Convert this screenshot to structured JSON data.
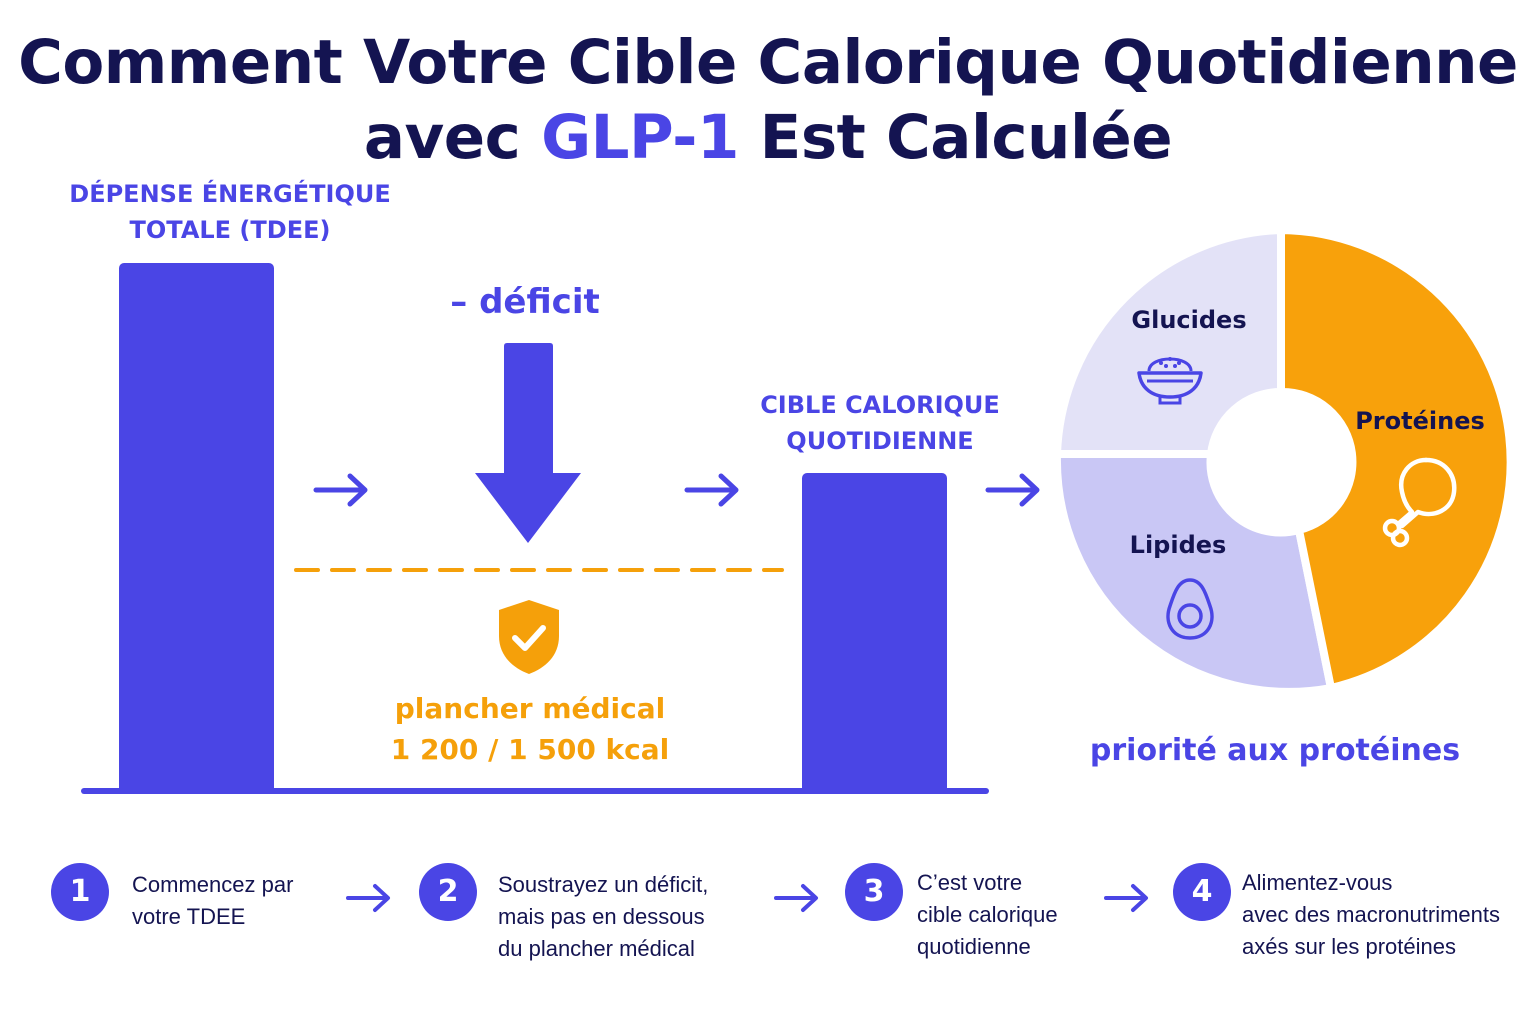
{
  "title": {
    "line1": "Comment Votre Cible Calorique Quotidienne",
    "line2_prefix": "avec ",
    "line2_accent": "GLP-1",
    "line2_suffix": " Est Calculée"
  },
  "tdee": {
    "label_line1": "DÉPENSE ÉNERGÉTIQUE",
    "label_line2": "TOTALE (TDEE)"
  },
  "deficit": {
    "label": "– déficit"
  },
  "floor": {
    "label": "plancher médical",
    "value": "1 200 / 1 500 kcal",
    "icon": "shield-check-icon"
  },
  "target": {
    "label_line1": "CIBLE CALORIQUE",
    "label_line2": "QUOTIDIENNE"
  },
  "macros": {
    "carbs": {
      "label": "Glucides",
      "icon": "rice-bowl-icon"
    },
    "fats": {
      "label": "Lipides",
      "icon": "avocado-icon"
    },
    "protein": {
      "label": "Protéines",
      "icon": "chicken-leg-icon"
    },
    "caption": "priorité aux protéines"
  },
  "steps": [
    {
      "number": "1",
      "lines": [
        "Commencez par",
        "votre TDEE"
      ]
    },
    {
      "number": "2",
      "lines": [
        "Soustrayez un déficit,",
        "mais pas en dessous",
        "du plancher médical"
      ]
    },
    {
      "number": "3",
      "lines": [
        "C’est votre",
        "cible calorique",
        "quotidienne"
      ]
    },
    {
      "number": "4",
      "lines": [
        "Alimentez-vous",
        "avec des macronutriments",
        "axés sur les protéines"
      ]
    }
  ],
  "colors": {
    "accent": "#4a45e5",
    "title": "#141451",
    "floor": "#f5a00a",
    "carbs": "#e3e2f7",
    "fats": "#c9c7f5",
    "protein": "#f8a10b"
  }
}
